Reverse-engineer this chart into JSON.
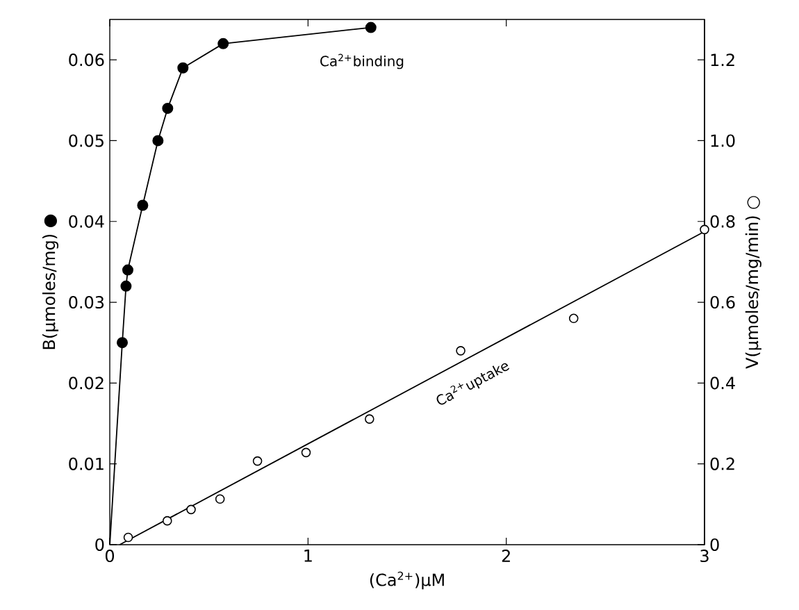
{
  "chart_data": {
    "type": "scatter",
    "xlabel": "(Ca$^{2+}$)µM",
    "ylabel": "B(µmoles/mg) ●",
    "y2label": "V(µmoles/mg/min) ○",
    "xlim": [
      0,
      3
    ],
    "xticks": [
      0,
      1,
      2,
      3
    ],
    "ylim": [
      0,
      0.065
    ],
    "yticks": [
      0,
      0.01,
      0.02,
      0.03,
      0.04,
      0.05,
      0.06
    ],
    "y2lim": [
      0,
      1.3
    ],
    "y2ticks": [
      0,
      0.2,
      0.4,
      0.6,
      0.8,
      {
        "value": 1,
        "label": "1.0"
      },
      1.2
    ],
    "series": [
      {
        "type": "line",
        "color": "#000000",
        "x": [
          0,
          0.063,
          0.082,
          0.091,
          0.166,
          0.243,
          0.292,
          0.369,
          0.572,
          1.317
        ],
        "values": [
          0,
          0.025,
          0.032,
          0.034,
          0.042,
          0.05,
          0.054,
          0.059,
          0.062,
          0.064
        ]
      },
      {
        "name": "Ca$^{2+}$binding",
        "marker": "circle",
        "color": "#000000",
        "x": [
          0.063,
          0.082,
          0.091,
          0.166,
          0.243,
          0.292,
          0.369,
          0.572,
          1.317
        ],
        "values": [
          0.025,
          0.032,
          0.034,
          0.042,
          0.05,
          0.054,
          0.059,
          0.062,
          0.064
        ]
      },
      {
        "type": "line",
        "axis": "y2",
        "color": "#000000",
        "x": [
          0.05,
          3
        ],
        "values": [
          0,
          0.775
        ]
      },
      {
        "axis": "y2",
        "name": "Ca$^{2+}$uptake",
        "marker": "circle",
        "color": "#000000",
        "x": [
          0.093,
          0.29,
          0.41,
          0.556,
          0.745,
          0.99,
          1.31,
          1.77,
          2.34,
          3.0
        ],
        "values": [
          0.018,
          0.059,
          0.087,
          0.113,
          0.207,
          0.228,
          0.311,
          0.48,
          0.56,
          0.78
        ]
      }
    ]
  }
}
